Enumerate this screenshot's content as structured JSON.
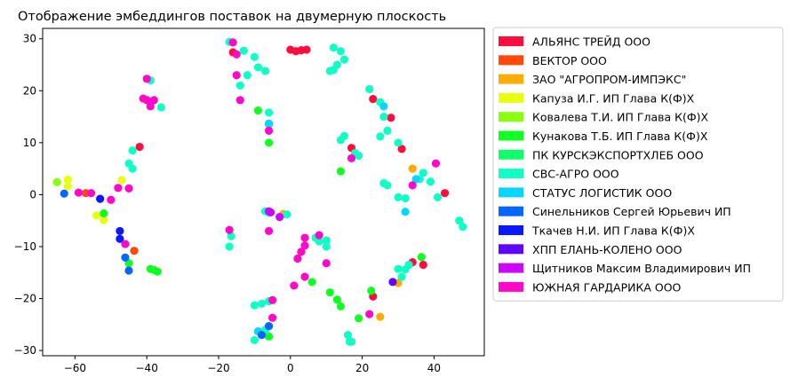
{
  "chart_data": {
    "type": "scatter",
    "title": "Отображение эмбеддингов поставок на двумерную плоскость",
    "xlabel": "",
    "ylabel": "",
    "xlim": [
      -69,
      54
    ],
    "ylim": [
      -31,
      32
    ],
    "x_ticks": [
      -60,
      -40,
      -20,
      0,
      20,
      40
    ],
    "y_ticks": [
      -30,
      -20,
      -10,
      0,
      10,
      20,
      30
    ],
    "grid": false,
    "legend_position": "outside-right",
    "series": [
      {
        "name": "АЛЬЯНС ТРЕЙД ООО",
        "color": "#ff0d3c",
        "points": [
          [
            -42,
            9.2
          ],
          [
            0,
            27.9
          ],
          [
            1.5,
            27.6
          ],
          [
            3,
            27.8
          ],
          [
            4.5,
            27.9
          ],
          [
            -16,
            27.4
          ],
          [
            23,
            18.4
          ],
          [
            28,
            14.8
          ],
          [
            17,
            9
          ],
          [
            31,
            8.8
          ],
          [
            43,
            0.3
          ],
          [
            34,
            -13
          ],
          [
            37,
            -13.5
          ],
          [
            23,
            -19.6
          ]
        ]
      },
      {
        "name": "ВЕКТОР ООО",
        "color": "#ff4a0a",
        "points": [
          [
            -57,
            0.3
          ],
          [
            -43.5,
            -10.8
          ]
        ]
      },
      {
        "name": "ЗАО \"АГРОПРОМ-ИМПЭКС\"",
        "color": "#ffab00",
        "points": [
          [
            34,
            5
          ],
          [
            30,
            -17
          ],
          [
            25,
            -23.5
          ],
          [
            -2,
            -3.7
          ]
        ]
      },
      {
        "name": "Капуза И.Г. ИП Глава К(Ф)Х",
        "color": "#e8ff10",
        "points": [
          [
            -62,
            2.9
          ],
          [
            -62,
            1.6
          ],
          [
            -47,
            2.8
          ],
          [
            -54,
            -4
          ],
          [
            -52,
            -4.9
          ]
        ]
      },
      {
        "name": "Ковалева Т.И. ИП Глава К(Ф)Х",
        "color": "#88ff10",
        "points": [
          [
            -65,
            2.4
          ]
        ]
      },
      {
        "name": "Кунакова Т.Б. ИП Глава К(Ф)Х",
        "color": "#12ff24",
        "points": [
          [
            -52,
            -3.6
          ],
          [
            -45,
            -13.2
          ],
          [
            -39,
            -14.3
          ],
          [
            -38,
            -14.5
          ],
          [
            -37,
            -14.8
          ],
          [
            -9,
            16.2
          ],
          [
            -6,
            10
          ],
          [
            14,
            4.5
          ],
          [
            -6,
            -27.3
          ],
          [
            6,
            -16.8
          ],
          [
            11,
            -18.8
          ],
          [
            13,
            -20.2
          ],
          [
            19,
            -23.8
          ],
          [
            22.5,
            -18.5
          ],
          [
            36.5,
            -12
          ],
          [
            14,
            -21.5
          ]
        ]
      },
      {
        "name": "ПК КУРСКЭКСПОРТХЛЕБ ООО",
        "color": "#10ff6a",
        "points": []
      },
      {
        "name": "СВС-АГРО ООО",
        "color": "#10ffc4",
        "points": [
          [
            -17,
            29.4
          ],
          [
            -13,
            27.7
          ],
          [
            -10,
            26.5
          ],
          [
            -9,
            24.5
          ],
          [
            -7,
            23.8
          ],
          [
            -12,
            23
          ],
          [
            -14,
            21
          ],
          [
            -6,
            15.8
          ],
          [
            -6,
            13.5
          ],
          [
            -39,
            22
          ],
          [
            -36,
            16.8
          ],
          [
            -44,
            8.5
          ],
          [
            -45,
            6
          ],
          [
            -44,
            5
          ],
          [
            12,
            28.3
          ],
          [
            14,
            27.6
          ],
          [
            15,
            26
          ],
          [
            13,
            25
          ],
          [
            12,
            24
          ],
          [
            11,
            23.8
          ],
          [
            22,
            20.3
          ],
          [
            25,
            17.8
          ],
          [
            26,
            15
          ],
          [
            27,
            12.3
          ],
          [
            25,
            11.2
          ],
          [
            30,
            10
          ],
          [
            14,
            10.5
          ],
          [
            15,
            11.3
          ],
          [
            18,
            8
          ],
          [
            19,
            7.5
          ],
          [
            26,
            2.2
          ],
          [
            27,
            1.8
          ],
          [
            30,
            -0.5
          ],
          [
            32,
            -0.7
          ],
          [
            36,
            3
          ],
          [
            37,
            4.2
          ],
          [
            39,
            2.5
          ],
          [
            41,
            -0.5
          ],
          [
            47,
            -5
          ],
          [
            48,
            -6.2
          ],
          [
            -7,
            -3.2
          ],
          [
            -6,
            -3.5
          ],
          [
            -1,
            -3.8
          ],
          [
            -16.5,
            -8
          ],
          [
            -17,
            -10
          ],
          [
            -10,
            -21.3
          ],
          [
            -8,
            -21
          ],
          [
            -6,
            -20.5
          ],
          [
            -10,
            -28
          ],
          [
            -7,
            -26
          ],
          [
            7,
            -8.3
          ],
          [
            8,
            -9
          ],
          [
            10,
            -8.8
          ],
          [
            10,
            -10
          ],
          [
            30,
            -14.3
          ],
          [
            32,
            -14.4
          ],
          [
            33,
            -13.5
          ],
          [
            31,
            -15.8
          ],
          [
            16,
            -27
          ],
          [
            17,
            -28.3
          ],
          [
            16.5,
            -28.3
          ]
        ]
      },
      {
        "name": "СТАТУС ЛОГИСТИК ООО",
        "color": "#08d6ff",
        "points": [
          [
            -6,
            13.7
          ],
          [
            26,
            17
          ],
          [
            35,
            3
          ],
          [
            32,
            -3.3
          ],
          [
            -9,
            -26.3
          ]
        ]
      },
      {
        "name": "Синельников Сергей Юрьевич ИП",
        "color": "#0866ff",
        "points": [
          [
            -63,
            0.2
          ],
          [
            -46,
            -12.1
          ],
          [
            -45,
            -14.6
          ],
          [
            -6,
            -25.3
          ],
          [
            -8,
            -27
          ]
        ]
      },
      {
        "name": "Ткачев Н.И. ИП Глава К(Ф)Х",
        "color": "#0818ff",
        "points": [
          [
            -53,
            -0.8
          ],
          [
            -47.5,
            -7
          ],
          [
            -47.5,
            -8.5
          ]
        ]
      },
      {
        "name": "ХПП ЕЛАНЬ-КОЛЕНО ООО",
        "color": "#5c08ff",
        "points": [
          [
            28.5,
            -16.8
          ]
        ]
      },
      {
        "name": "Щитников Максим Владимирович ИП",
        "color": "#c808ff",
        "points": [
          [
            -6,
            -3.2
          ],
          [
            -3,
            -4.3
          ],
          [
            -5.5,
            -3.4
          ]
        ]
      },
      {
        "name": "ЮЖНАЯ ГАРДАРИКА ООО",
        "color": "#ff08c8",
        "points": [
          [
            -16,
            29.3
          ],
          [
            -15,
            27
          ],
          [
            -15,
            23
          ],
          [
            -14,
            18.2
          ],
          [
            -6,
            12.3
          ],
          [
            -40,
            22.3
          ],
          [
            -41,
            18.5
          ],
          [
            -40,
            18.2
          ],
          [
            -38,
            18.2
          ],
          [
            -39,
            17
          ],
          [
            -59,
            0.4
          ],
          [
            -55.5,
            0.3
          ],
          [
            -50,
            -1
          ],
          [
            -48,
            1.3
          ],
          [
            -45,
            1.2
          ],
          [
            -46,
            -9.5
          ],
          [
            -17,
            -6.8
          ],
          [
            -6,
            -7
          ],
          [
            4,
            -8.3
          ],
          [
            4,
            -9.8
          ],
          [
            2,
            -12.3
          ],
          [
            3,
            -11
          ],
          [
            4,
            -15.8
          ],
          [
            1,
            -17.5
          ],
          [
            8,
            -7.8
          ],
          [
            10,
            -13.2
          ],
          [
            -5,
            -20.3
          ],
          [
            -5,
            -23.7
          ],
          [
            17,
            7
          ],
          [
            34,
            1.8
          ],
          [
            40.5,
            6
          ],
          [
            22,
            -23
          ]
        ]
      }
    ]
  }
}
